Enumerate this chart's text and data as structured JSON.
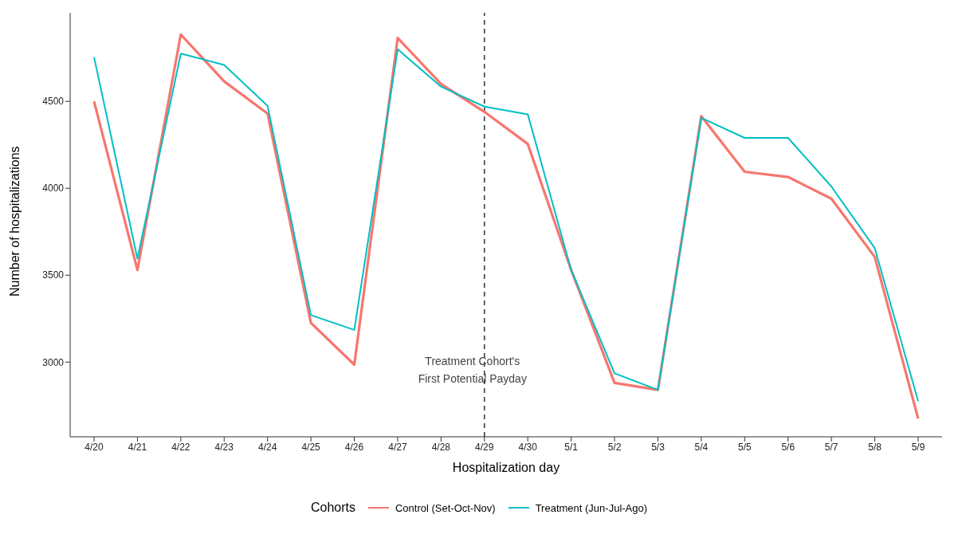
{
  "chart_data": {
    "type": "line",
    "xlabel": "Hospitalization day",
    "ylabel": "Number of hospitalizations",
    "legend_title": "Cohorts",
    "categories": [
      "4/20",
      "4/21",
      "4/22",
      "4/23",
      "4/24",
      "4/25",
      "4/26",
      "4/27",
      "4/28",
      "4/29",
      "4/30",
      "5/1",
      "5/2",
      "5/3",
      "5/4",
      "5/5",
      "5/6",
      "5/7",
      "5/8",
      "5/9"
    ],
    "series": [
      {
        "name": "Control (Set-Oct-Nov)",
        "color": "#f8766d",
        "values": [
          4500,
          3530,
          4885,
          4615,
          4430,
          3225,
          2985,
          4865,
          4600,
          4440,
          4255,
          3530,
          2880,
          2840,
          4415,
          4095,
          4065,
          3940,
          3605,
          2675
        ]
      },
      {
        "name": "Treatment (Jun-Jul-Ago)",
        "color": "#00bfc4",
        "values": [
          4755,
          3595,
          4775,
          4710,
          4475,
          3270,
          3185,
          4800,
          4585,
          4470,
          4425,
          3530,
          2935,
          2840,
          4405,
          4290,
          4290,
          4010,
          3655,
          2775
        ]
      }
    ],
    "ylim": [
      2570,
      5010
    ],
    "yticks": [
      3000,
      3500,
      4000,
      4500
    ],
    "ref_lines": [
      {
        "axis": "x",
        "value": "4/29",
        "label": "Treatment Cohort's\nFirst Potential Payday",
        "color": "#333333",
        "line_style": "dashed"
      }
    ],
    "grid": false,
    "legend": "bottom",
    "marker": "none",
    "line_style": "solid"
  }
}
